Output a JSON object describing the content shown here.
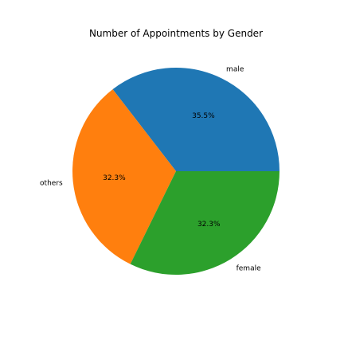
{
  "chart_data": {
    "type": "pie",
    "title": "Number of Appointments by Gender",
    "slices": [
      {
        "label": "male",
        "percent": 35.5,
        "percent_label": "35.5%",
        "color": "#1f77b4"
      },
      {
        "label": "others",
        "percent": 32.3,
        "percent_label": "32.3%",
        "color": "#ff7f0e"
      },
      {
        "label": "female",
        "percent": 32.3,
        "percent_label": "32.3%",
        "color": "#2ca02c"
      }
    ],
    "start_angle": "0° (3 o'clock), counter-clockwise",
    "legend": "none"
  }
}
